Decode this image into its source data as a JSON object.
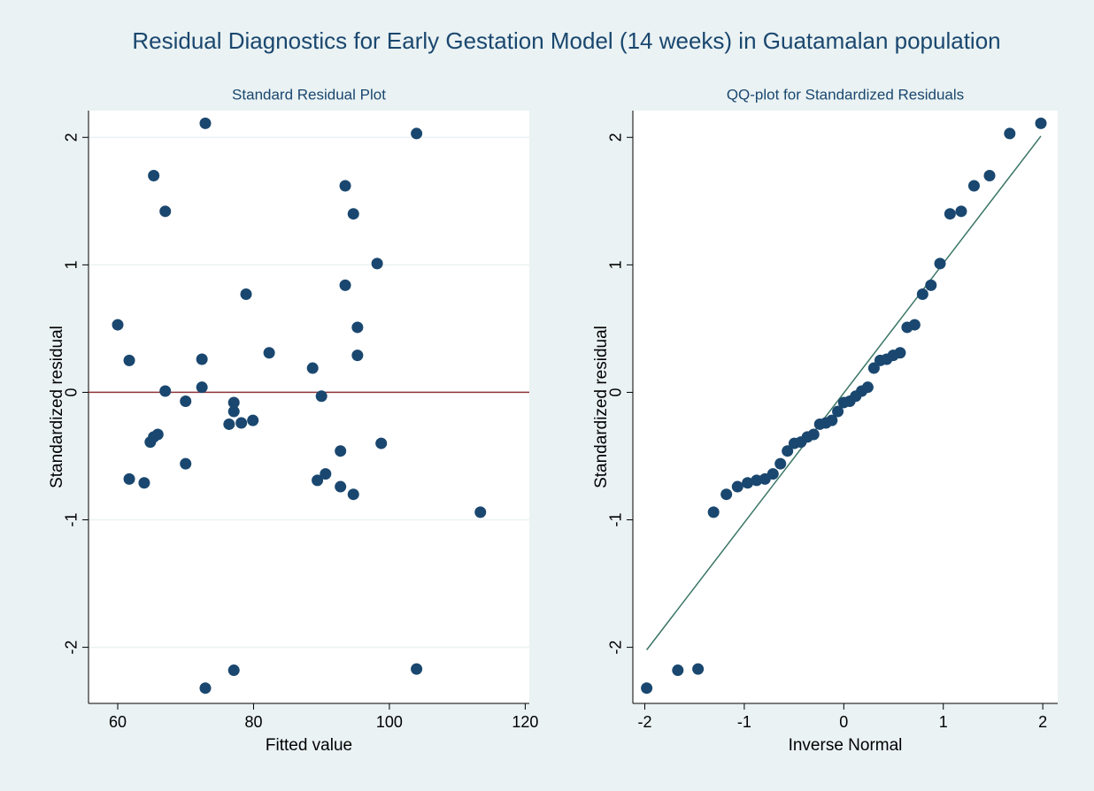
{
  "title": "Residual Diagnostics for Early Gestation Model (14 weeks) in Guatamalan population",
  "chart_data": [
    {
      "type": "scatter",
      "title": "Standard Residual Plot",
      "xlabel": "Fitted value",
      "ylabel": "Standardized residual",
      "x": [
        60.0,
        61.7,
        61.7,
        63.9,
        64.8,
        65.3,
        65.9,
        65.3,
        67.0,
        67.0,
        70.0,
        70.0,
        72.4,
        72.4,
        72.9,
        72.9,
        76.4,
        77.1,
        77.1,
        77.1,
        78.2,
        78.9,
        79.9,
        82.3,
        88.7,
        89.4,
        90.0,
        90.6,
        92.8,
        92.8,
        93.5,
        93.5,
        94.7,
        94.7,
        95.3,
        95.3,
        98.2,
        98.8,
        104.0,
        104.0,
        113.4
      ],
      "y": [
        0.53,
        0.25,
        -0.68,
        -0.71,
        -0.39,
        -0.35,
        -0.33,
        1.7,
        1.42,
        0.01,
        -0.07,
        -0.56,
        0.26,
        0.04,
        2.11,
        -2.32,
        -0.25,
        -0.08,
        -0.15,
        -2.18,
        -0.24,
        0.77,
        -0.22,
        0.31,
        0.19,
        -0.69,
        -0.03,
        -0.64,
        -0.46,
        -0.74,
        1.62,
        0.84,
        -0.8,
        1.4,
        0.51,
        0.29,
        1.01,
        -0.4,
        2.03,
        -2.17,
        -0.94
      ],
      "color": "#1a476f",
      "xlim": [
        55.7,
        120.6
      ],
      "ylim": [
        -2.44,
        2.21
      ],
      "xticks": [
        60,
        80,
        100,
        120
      ],
      "yticks": [
        -2,
        -1,
        0,
        1,
        2
      ],
      "grid": true,
      "hline": {
        "y": 0,
        "color": "#90353b"
      }
    },
    {
      "type": "scatter",
      "title": "QQ-plot for Standardized Residuals",
      "xlabel": "Inverse Normal",
      "ylabel": "Standardized residual",
      "x": [
        -1.981,
        -1.668,
        -1.465,
        -1.309,
        -1.18,
        -1.068,
        -0.967,
        -0.876,
        -0.792,
        -0.712,
        -0.637,
        -0.566,
        -0.497,
        -0.431,
        -0.366,
        -0.303,
        -0.241,
        -0.18,
        -0.12,
        -0.06,
        0,
        0.06,
        0.12,
        0.18,
        0.241,
        0.303,
        0.366,
        0.431,
        0.497,
        0.566,
        0.637,
        0.712,
        0.792,
        0.876,
        0.967,
        1.068,
        1.18,
        1.309,
        1.465,
        1.668,
        1.981
      ],
      "y": [
        -2.32,
        -2.18,
        -2.17,
        -0.94,
        -0.8,
        -0.74,
        -0.71,
        -0.69,
        -0.68,
        -0.64,
        -0.56,
        -0.46,
        -0.4,
        -0.39,
        -0.35,
        -0.33,
        -0.25,
        -0.24,
        -0.22,
        -0.15,
        -0.08,
        -0.07,
        -0.03,
        0.01,
        0.04,
        0.19,
        0.25,
        0.26,
        0.29,
        0.31,
        0.51,
        0.53,
        0.77,
        0.84,
        1.01,
        1.4,
        1.42,
        1.62,
        1.7,
        2.03,
        2.11
      ],
      "color": "#1a476f",
      "xlim": [
        -2.12,
        2.15
      ],
      "ylim": [
        -2.44,
        2.21
      ],
      "xticks": [
        -2,
        -1,
        0,
        1,
        2
      ],
      "yticks": [
        -2,
        -1,
        0,
        1,
        2
      ],
      "grid": false,
      "fit_line": {
        "x": [
          -1.981,
          1.981
        ],
        "y": [
          -2.02,
          2.01
        ],
        "color": "#3a7566"
      }
    }
  ]
}
